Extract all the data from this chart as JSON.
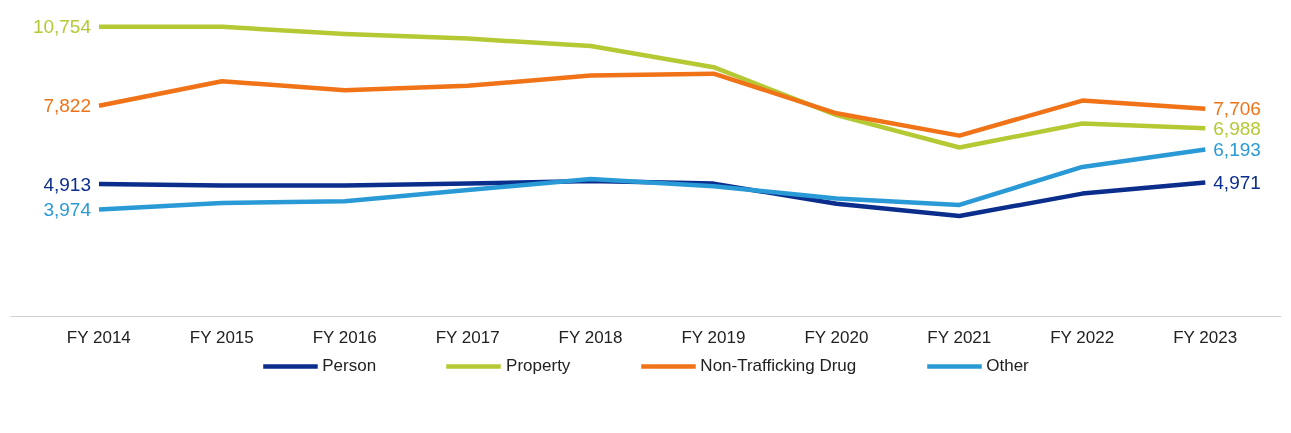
{
  "chart_data": {
    "type": "line",
    "categories": [
      "FY 2014",
      "FY 2015",
      "FY 2016",
      "FY 2017",
      "FY 2018",
      "FY 2019",
      "FY 2020",
      "FY 2021",
      "FY 2022",
      "FY 2023"
    ],
    "tick_labels": "x",
    "legend": "bottom",
    "line_style": "solid",
    "series": [
      {
        "name": "Person",
        "color": "#0b2d8c",
        "values": [
          4913,
          4860,
          4860,
          4930,
          5030,
          4930,
          4180,
          3730,
          4560,
          4971
        ],
        "value_labels": [
          "4,913",
          null,
          null,
          null,
          null,
          null,
          null,
          null,
          null,
          "4,971"
        ]
      },
      {
        "name": "Property",
        "color": "#b5c935",
        "values": [
          10754,
          10750,
          10480,
          10310,
          10035,
          9250,
          7470,
          6270,
          7160,
          6988
        ],
        "value_labels": [
          "10,754",
          null,
          null,
          null,
          null,
          null,
          null,
          null,
          null,
          "6,988"
        ]
      },
      {
        "name": "Non-Trafficking Drug",
        "color": "#f07318",
        "values": [
          7822,
          8730,
          8390,
          8560,
          8940,
          9010,
          7540,
          6710,
          8010,
          7706
        ],
        "value_labels": [
          "7,822",
          null,
          null,
          null,
          null,
          null,
          null,
          null,
          null,
          "7,706"
        ]
      },
      {
        "name": "Other",
        "color": "#2a9ad6",
        "values": [
          3974,
          4210,
          4280,
          4690,
          5100,
          4830,
          4380,
          4140,
          5550,
          6193
        ],
        "value_labels": [
          "3,974",
          null,
          null,
          null,
          null,
          null,
          null,
          null,
          null,
          "6,193"
        ]
      }
    ]
  }
}
